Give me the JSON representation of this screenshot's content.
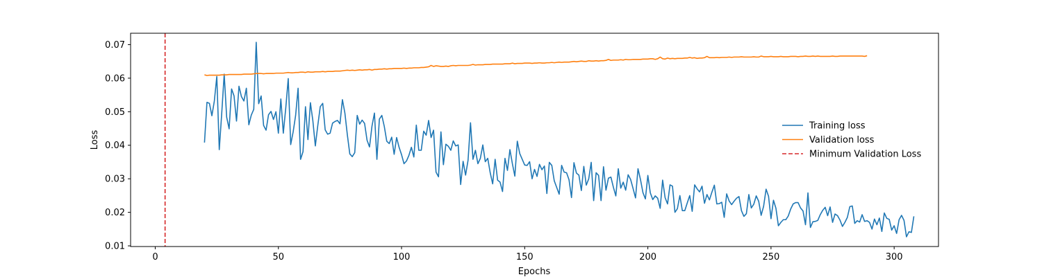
{
  "chart_data": {
    "type": "line",
    "title": "",
    "xlabel": "Epochs",
    "ylabel": "Loss",
    "xlim": [
      -10,
      318
    ],
    "ylim": [
      0.0098,
      0.0734
    ],
    "xticks": [
      0,
      50,
      100,
      150,
      200,
      250,
      300
    ],
    "yticks": [
      0.01,
      0.02,
      0.03,
      0.04,
      0.05,
      0.06,
      0.07
    ],
    "grid": false,
    "legend_position": "center-right",
    "x_start": 20,
    "series": [
      {
        "name": "Training loss",
        "color": "#1f77b4",
        "style": "solid",
        "values": [
          0.0408,
          0.0528,
          0.0525,
          0.0488,
          0.0532,
          0.0605,
          0.0387,
          0.0495,
          0.0612,
          0.0484,
          0.0449,
          0.0568,
          0.0547,
          0.0472,
          0.0576,
          0.0545,
          0.0532,
          0.057,
          0.0461,
          0.049,
          0.0507,
          0.0707,
          0.0524,
          0.0547,
          0.0459,
          0.0445,
          0.0491,
          0.0501,
          0.0477,
          0.05,
          0.0436,
          0.0538,
          0.0436,
          0.0511,
          0.0599,
          0.0402,
          0.044,
          0.0489,
          0.057,
          0.0358,
          0.0381,
          0.0515,
          0.0417,
          0.0527,
          0.0473,
          0.0398,
          0.0459,
          0.0515,
          0.0525,
          0.0446,
          0.0433,
          0.0436,
          0.0466,
          0.0471,
          0.0474,
          0.0464,
          0.0536,
          0.0496,
          0.0431,
          0.0374,
          0.0366,
          0.0378,
          0.0489,
          0.0463,
          0.0475,
          0.0465,
          0.0415,
          0.0395,
          0.0457,
          0.0496,
          0.0358,
          0.0478,
          0.0489,
          0.0456,
          0.0412,
          0.0405,
          0.0424,
          0.0373,
          0.0423,
          0.0394,
          0.0372,
          0.0345,
          0.0353,
          0.037,
          0.0394,
          0.0365,
          0.046,
          0.0385,
          0.0385,
          0.0442,
          0.043,
          0.0474,
          0.0423,
          0.0445,
          0.032,
          0.0306,
          0.044,
          0.0342,
          0.0403,
          0.0397,
          0.0385,
          0.0413,
          0.0398,
          0.0401,
          0.0283,
          0.0352,
          0.0311,
          0.0355,
          0.0467,
          0.0358,
          0.0385,
          0.0345,
          0.0361,
          0.0401,
          0.0351,
          0.0361,
          0.0318,
          0.0285,
          0.0358,
          0.0296,
          0.029,
          0.0262,
          0.0361,
          0.0325,
          0.0387,
          0.0345,
          0.0308,
          0.0412,
          0.0375,
          0.0358,
          0.0341,
          0.034,
          0.0351,
          0.03,
          0.0328,
          0.0307,
          0.0343,
          0.0327,
          0.0338,
          0.0256,
          0.0349,
          0.034,
          0.0294,
          0.0274,
          0.0254,
          0.034,
          0.032,
          0.0318,
          0.0297,
          0.0244,
          0.0348,
          0.0317,
          0.0311,
          0.0265,
          0.0337,
          0.0281,
          0.03,
          0.0349,
          0.0235,
          0.0318,
          0.031,
          0.0235,
          0.0336,
          0.0266,
          0.0302,
          0.0305,
          0.0275,
          0.0249,
          0.033,
          0.0272,
          0.029,
          0.0266,
          0.0312,
          0.0298,
          0.0271,
          0.0243,
          0.033,
          0.0298,
          0.0259,
          0.024,
          0.031,
          0.0258,
          0.0238,
          0.0249,
          0.0242,
          0.0212,
          0.0296,
          0.0244,
          0.0225,
          0.0282,
          0.0278,
          0.02,
          0.0211,
          0.025,
          0.0205,
          0.0205,
          0.0228,
          0.025,
          0.0203,
          0.0282,
          0.027,
          0.0261,
          0.0278,
          0.0227,
          0.0253,
          0.0237,
          0.026,
          0.0281,
          0.0225,
          0.0226,
          0.023,
          0.0185,
          0.0255,
          0.0234,
          0.0223,
          0.0233,
          0.0242,
          0.0247,
          0.0205,
          0.0188,
          0.0196,
          0.0253,
          0.0213,
          0.0224,
          0.0249,
          0.0233,
          0.0191,
          0.0218,
          0.0269,
          0.0248,
          0.0181,
          0.0236,
          0.0212,
          0.016,
          0.017,
          0.0178,
          0.0178,
          0.0189,
          0.021,
          0.0225,
          0.0229,
          0.0229,
          0.0213,
          0.0204,
          0.0163,
          0.0258,
          0.0155,
          0.0172,
          0.0173,
          0.0176,
          0.0193,
          0.0206,
          0.0215,
          0.019,
          0.0216,
          0.017,
          0.0195,
          0.019,
          0.0177,
          0.0158,
          0.017,
          0.0185,
          0.0217,
          0.0219,
          0.0167,
          0.0175,
          0.0171,
          0.0193,
          0.0173,
          0.0175,
          0.017,
          0.015,
          0.018,
          0.0163,
          0.0183,
          0.0143,
          0.0198,
          0.0182,
          0.0179,
          0.0147,
          0.016,
          0.0137,
          0.0178,
          0.0191,
          0.0176,
          0.0127,
          0.0142,
          0.014,
          0.0188
        ]
      },
      {
        "name": "Validation loss",
        "color": "#ff7f0e",
        "style": "solid",
        "values": [
          0.061,
          0.0608,
          0.0609,
          0.0609,
          0.0609,
          0.0609,
          0.0609,
          0.061,
          0.061,
          0.061,
          0.0611,
          0.0611,
          0.0611,
          0.0611,
          0.0611,
          0.0611,
          0.0612,
          0.0612,
          0.0612,
          0.0612,
          0.0613,
          0.0614,
          0.0614,
          0.0614,
          0.0613,
          0.0614,
          0.0614,
          0.0614,
          0.0614,
          0.0615,
          0.0615,
          0.0615,
          0.0615,
          0.0616,
          0.0617,
          0.0616,
          0.0616,
          0.0617,
          0.0617,
          0.0618,
          0.0618,
          0.0617,
          0.0619,
          0.0618,
          0.0618,
          0.0619,
          0.0619,
          0.0619,
          0.062,
          0.0619,
          0.062,
          0.062,
          0.062,
          0.0621,
          0.0621,
          0.0621,
          0.0622,
          0.0623,
          0.0624,
          0.0623,
          0.0624,
          0.0623,
          0.0624,
          0.0625,
          0.0624,
          0.0625,
          0.0625,
          0.0626,
          0.0624,
          0.0626,
          0.0626,
          0.0627,
          0.0627,
          0.0628,
          0.0627,
          0.0628,
          0.0628,
          0.0629,
          0.0629,
          0.0629,
          0.0629,
          0.063,
          0.0629,
          0.063,
          0.063,
          0.0631,
          0.0631,
          0.0631,
          0.0632,
          0.0632,
          0.0633,
          0.0634,
          0.0638,
          0.0635,
          0.0637,
          0.0636,
          0.0635,
          0.0635,
          0.0636,
          0.0635,
          0.0637,
          0.0638,
          0.0637,
          0.0638,
          0.0638,
          0.0638,
          0.0638,
          0.0638,
          0.0639,
          0.0641,
          0.0639,
          0.064,
          0.064,
          0.064,
          0.0641,
          0.0641,
          0.0641,
          0.0642,
          0.0642,
          0.0642,
          0.0642,
          0.0642,
          0.0643,
          0.0643,
          0.0643,
          0.0645,
          0.0643,
          0.0644,
          0.0644,
          0.0644,
          0.0645,
          0.0645,
          0.0645,
          0.0644,
          0.0645,
          0.0645,
          0.0646,
          0.0645,
          0.0645,
          0.0646,
          0.0646,
          0.0647,
          0.0646,
          0.0647,
          0.0648,
          0.0647,
          0.0648,
          0.0648,
          0.0648,
          0.0649,
          0.065,
          0.0649,
          0.065,
          0.0651,
          0.065,
          0.065,
          0.0652,
          0.0651,
          0.0651,
          0.0652,
          0.0651,
          0.0652,
          0.0652,
          0.0653,
          0.0656,
          0.0653,
          0.0654,
          0.0654,
          0.0654,
          0.0655,
          0.0654,
          0.0656,
          0.0655,
          0.0655,
          0.0656,
          0.0656,
          0.0656,
          0.0656,
          0.0657,
          0.0657,
          0.0657,
          0.0658,
          0.0658,
          0.0656,
          0.0658,
          0.0663,
          0.0658,
          0.0657,
          0.066,
          0.0658,
          0.0659,
          0.0658,
          0.0659,
          0.0659,
          0.0659,
          0.066,
          0.066,
          0.0662,
          0.066,
          0.0661,
          0.0659,
          0.066,
          0.066,
          0.0661,
          0.0665,
          0.0661,
          0.0661,
          0.0661,
          0.0662,
          0.0661,
          0.0662,
          0.0662,
          0.0662,
          0.0663,
          0.0662,
          0.0663,
          0.0663,
          0.0663,
          0.0664,
          0.0663,
          0.0663,
          0.0663,
          0.0663,
          0.0664,
          0.0663,
          0.0663,
          0.0666,
          0.0664,
          0.0664,
          0.0664,
          0.0665,
          0.0664,
          0.0664,
          0.0664,
          0.0665,
          0.0664,
          0.0664,
          0.0664,
          0.0665,
          0.0665,
          0.0665,
          0.0664,
          0.0665,
          0.0665,
          0.0666,
          0.0665,
          0.0665,
          0.0666,
          0.0665,
          0.0666,
          0.0665,
          0.0665,
          0.0665,
          0.0665,
          0.0665,
          0.0666,
          0.0665,
          0.0665,
          0.0666,
          0.0666,
          0.0666,
          0.0666,
          0.0666,
          0.0666,
          0.0666,
          0.0666,
          0.0666,
          0.0666,
          0.0665,
          0.0667
        ]
      }
    ],
    "vlines": [
      {
        "name": "Minimum Validation Loss",
        "x": 4,
        "color": "#d62728",
        "style": "dashed"
      }
    ]
  }
}
